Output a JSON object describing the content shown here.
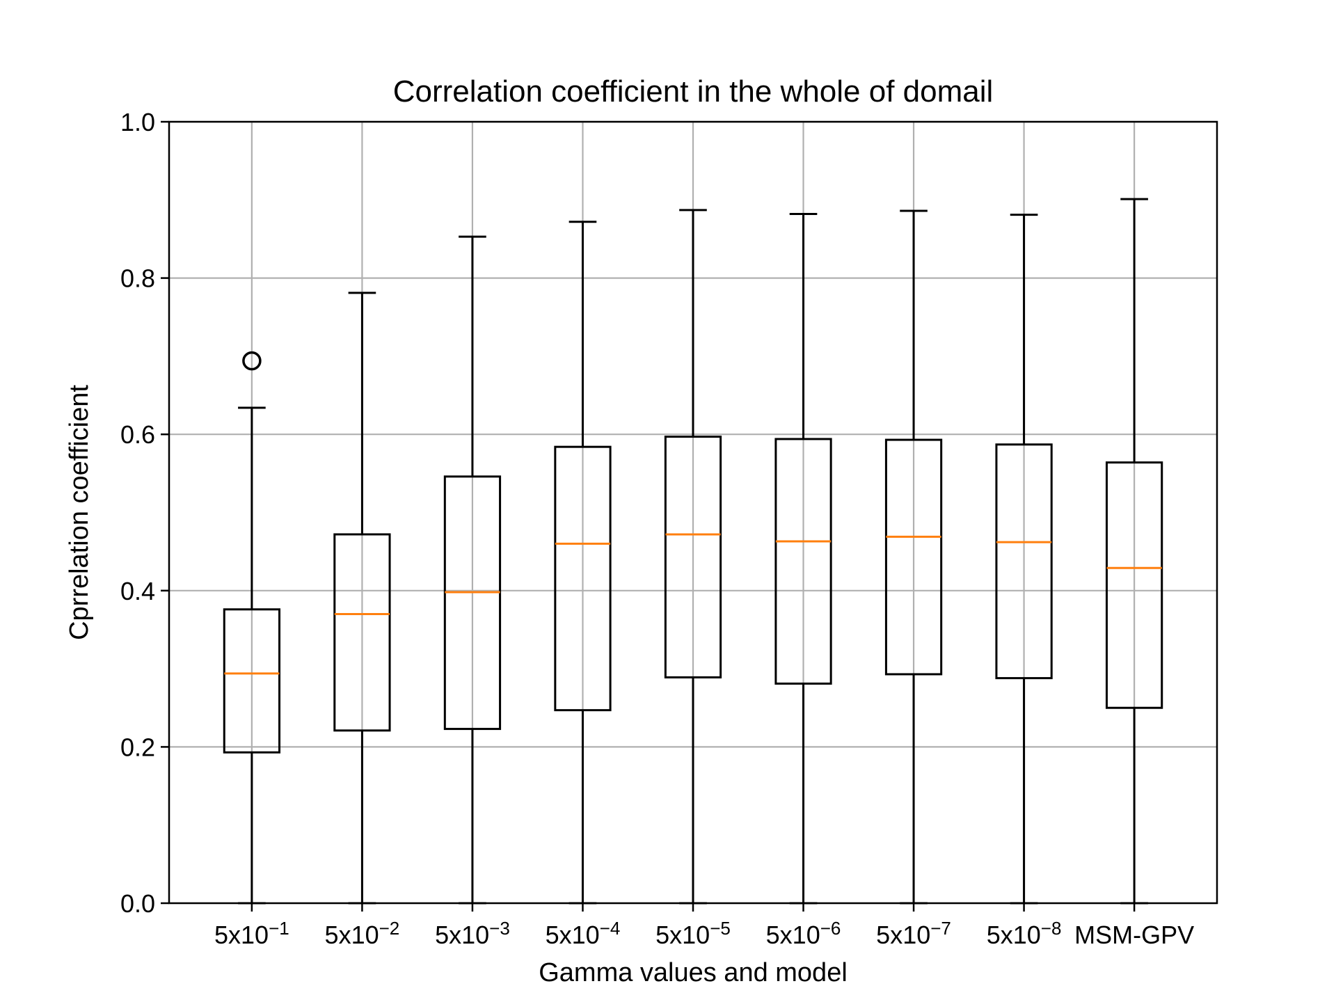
{
  "chart_data": {
    "type": "boxplot",
    "title": "Correlation coefficient in the whole of domail",
    "xlabel": "Gamma values and model",
    "ylabel": "Cprrelation coefficient",
    "ylim": [
      0.0,
      1.0
    ],
    "yticks": [
      0.0,
      0.2,
      0.4,
      0.6,
      0.8,
      1.0
    ],
    "ytick_labels": [
      "0.0",
      "0.2",
      "0.4",
      "0.6",
      "0.8",
      "1.0"
    ],
    "grid": true,
    "categories": [
      {
        "base": "5x10",
        "exp": "−1",
        "label": ""
      },
      {
        "base": "5x10",
        "exp": "−2",
        "label": ""
      },
      {
        "base": "5x10",
        "exp": "−3",
        "label": ""
      },
      {
        "base": "5x10",
        "exp": "−4",
        "label": ""
      },
      {
        "base": "5x10",
        "exp": "−5",
        "label": ""
      },
      {
        "base": "5x10",
        "exp": "−6",
        "label": ""
      },
      {
        "base": "5x10",
        "exp": "−7",
        "label": ""
      },
      {
        "base": "5x10",
        "exp": "−8",
        "label": ""
      },
      {
        "base": "",
        "exp": "",
        "label": "MSM-GPV"
      }
    ],
    "boxes": [
      {
        "whislo": 0.0,
        "q1": 0.193,
        "med": 0.294,
        "q3": 0.376,
        "whishi": 0.634,
        "fliers": [
          0.694
        ]
      },
      {
        "whislo": 0.0,
        "q1": 0.221,
        "med": 0.37,
        "q3": 0.472,
        "whishi": 0.781,
        "fliers": []
      },
      {
        "whislo": 0.0,
        "q1": 0.223,
        "med": 0.398,
        "q3": 0.546,
        "whishi": 0.853,
        "fliers": []
      },
      {
        "whislo": 0.0,
        "q1": 0.247,
        "med": 0.46,
        "q3": 0.584,
        "whishi": 0.872,
        "fliers": []
      },
      {
        "whislo": 0.0,
        "q1": 0.289,
        "med": 0.472,
        "q3": 0.597,
        "whishi": 0.887,
        "fliers": []
      },
      {
        "whislo": 0.0,
        "q1": 0.281,
        "med": 0.463,
        "q3": 0.594,
        "whishi": 0.882,
        "fliers": []
      },
      {
        "whislo": 0.0,
        "q1": 0.293,
        "med": 0.469,
        "q3": 0.593,
        "whishi": 0.886,
        "fliers": []
      },
      {
        "whislo": 0.0,
        "q1": 0.288,
        "med": 0.462,
        "q3": 0.587,
        "whishi": 0.881,
        "fliers": []
      },
      {
        "whislo": 0.0,
        "q1": 0.25,
        "med": 0.429,
        "q3": 0.564,
        "whishi": 0.901,
        "fliers": []
      }
    ],
    "colors": {
      "box": "#000000",
      "median": "#ff7f0e",
      "grid": "#b0b0b0"
    }
  }
}
